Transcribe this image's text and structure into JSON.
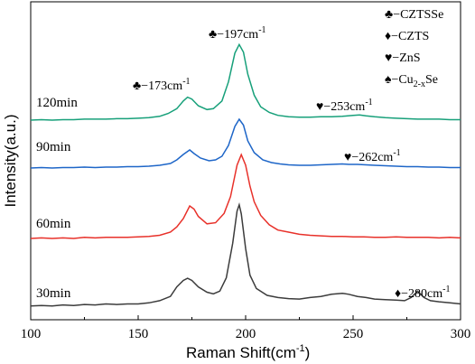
{
  "chart_data": {
    "type": "line",
    "xlabel": "Raman Shift(cm",
    "xlabel_sup": "-1",
    "xlabel_end": ")",
    "ylabel": "Intensity(a.u.)",
    "xlim": [
      100,
      300
    ],
    "xticks": [
      "100",
      "150",
      "200",
      "250",
      "300"
    ],
    "yticks_labels": false,
    "legend": [
      {
        "symbol": "♣",
        "label": "−CZTSSe"
      },
      {
        "symbol": "♦",
        "label": "−CZTS"
      },
      {
        "symbol": "♥",
        "label": "−ZnS"
      },
      {
        "symbol": "♠",
        "label": "−Cu",
        "sub": "2-x",
        "tail": "Se"
      }
    ],
    "series": [
      {
        "name": "30min",
        "color": "#3c3c3c",
        "baseline": 0,
        "points": [
          [
            100,
            2
          ],
          [
            105,
            3
          ],
          [
            110,
            2
          ],
          [
            115,
            4
          ],
          [
            120,
            3
          ],
          [
            125,
            5
          ],
          [
            130,
            4
          ],
          [
            135,
            6
          ],
          [
            140,
            5
          ],
          [
            145,
            6
          ],
          [
            150,
            6
          ],
          [
            155,
            8
          ],
          [
            160,
            12
          ],
          [
            165,
            20
          ],
          [
            168,
            38
          ],
          [
            171,
            50
          ],
          [
            173,
            54
          ],
          [
            175,
            50
          ],
          [
            178,
            38
          ],
          [
            182,
            28
          ],
          [
            185,
            25
          ],
          [
            188,
            30
          ],
          [
            191,
            55
          ],
          [
            194,
            120
          ],
          [
            196,
            180
          ],
          [
            197,
            192
          ],
          [
            198,
            175
          ],
          [
            200,
            110
          ],
          [
            202,
            60
          ],
          [
            205,
            35
          ],
          [
            210,
            22
          ],
          [
            215,
            18
          ],
          [
            220,
            16
          ],
          [
            225,
            15
          ],
          [
            230,
            18
          ],
          [
            235,
            20
          ],
          [
            240,
            24
          ],
          [
            245,
            26
          ],
          [
            248,
            24
          ],
          [
            252,
            20
          ],
          [
            256,
            18
          ],
          [
            260,
            15
          ],
          [
            265,
            14
          ],
          [
            270,
            13
          ],
          [
            274,
            12
          ],
          [
            277,
            18
          ],
          [
            280,
            30
          ],
          [
            283,
            18
          ],
          [
            286,
            12
          ],
          [
            290,
            10
          ],
          [
            295,
            8
          ],
          [
            300,
            6
          ]
        ]
      },
      {
        "name": "60min",
        "color": "#e8312a",
        "baseline": 0,
        "points": [
          [
            100,
            0
          ],
          [
            105,
            1
          ],
          [
            110,
            0
          ],
          [
            115,
            1
          ],
          [
            120,
            0
          ],
          [
            125,
            2
          ],
          [
            130,
            1
          ],
          [
            135,
            2
          ],
          [
            140,
            2
          ],
          [
            145,
            2
          ],
          [
            150,
            3
          ],
          [
            155,
            4
          ],
          [
            160,
            6
          ],
          [
            165,
            12
          ],
          [
            168,
            22
          ],
          [
            171,
            38
          ],
          [
            174,
            62
          ],
          [
            176,
            56
          ],
          [
            178,
            42
          ],
          [
            182,
            28
          ],
          [
            186,
            30
          ],
          [
            190,
            48
          ],
          [
            193,
            80
          ],
          [
            196,
            140
          ],
          [
            198,
            160
          ],
          [
            200,
            140
          ],
          [
            202,
            100
          ],
          [
            204,
            70
          ],
          [
            207,
            44
          ],
          [
            211,
            26
          ],
          [
            215,
            16
          ],
          [
            220,
            12
          ],
          [
            225,
            8
          ],
          [
            230,
            6
          ],
          [
            235,
            5
          ],
          [
            240,
            4
          ],
          [
            245,
            4
          ],
          [
            250,
            3
          ],
          [
            255,
            3
          ],
          [
            260,
            2
          ],
          [
            265,
            2
          ],
          [
            270,
            3
          ],
          [
            275,
            2
          ],
          [
            280,
            2
          ],
          [
            285,
            2
          ],
          [
            290,
            1
          ],
          [
            295,
            2
          ],
          [
            300,
            1
          ]
        ]
      },
      {
        "name": "90min",
        "color": "#1e66c8",
        "baseline": 0,
        "points": [
          [
            100,
            0
          ],
          [
            105,
            1
          ],
          [
            110,
            0
          ],
          [
            115,
            1
          ],
          [
            120,
            1
          ],
          [
            125,
            2
          ],
          [
            130,
            1
          ],
          [
            135,
            2
          ],
          [
            140,
            2
          ],
          [
            145,
            3
          ],
          [
            150,
            3
          ],
          [
            155,
            4
          ],
          [
            160,
            6
          ],
          [
            165,
            10
          ],
          [
            168,
            18
          ],
          [
            171,
            30
          ],
          [
            174,
            40
          ],
          [
            176,
            32
          ],
          [
            179,
            22
          ],
          [
            183,
            16
          ],
          [
            186,
            18
          ],
          [
            189,
            26
          ],
          [
            192,
            50
          ],
          [
            195,
            92
          ],
          [
            197,
            108
          ],
          [
            199,
            95
          ],
          [
            201,
            60
          ],
          [
            204,
            34
          ],
          [
            208,
            18
          ],
          [
            212,
            12
          ],
          [
            216,
            9
          ],
          [
            220,
            7
          ],
          [
            225,
            6
          ],
          [
            230,
            6
          ],
          [
            235,
            7
          ],
          [
            240,
            8
          ],
          [
            245,
            9
          ],
          [
            248,
            8
          ],
          [
            252,
            8
          ],
          [
            256,
            7
          ],
          [
            260,
            6
          ],
          [
            265,
            5
          ],
          [
            270,
            4
          ],
          [
            275,
            3
          ],
          [
            280,
            3
          ],
          [
            285,
            2
          ],
          [
            290,
            2
          ],
          [
            295,
            1
          ],
          [
            300,
            1
          ]
        ]
      },
      {
        "name": "120min",
        "color": "#17a07a",
        "baseline": 0,
        "points": [
          [
            100,
            0
          ],
          [
            105,
            1
          ],
          [
            110,
            0
          ],
          [
            115,
            1
          ],
          [
            120,
            1
          ],
          [
            125,
            2
          ],
          [
            130,
            2
          ],
          [
            135,
            2
          ],
          [
            140,
            3
          ],
          [
            145,
            3
          ],
          [
            150,
            4
          ],
          [
            155,
            5
          ],
          [
            160,
            8
          ],
          [
            164,
            14
          ],
          [
            168,
            24
          ],
          [
            171,
            40
          ],
          [
            173,
            48
          ],
          [
            175,
            44
          ],
          [
            178,
            30
          ],
          [
            182,
            22
          ],
          [
            185,
            24
          ],
          [
            189,
            40
          ],
          [
            192,
            80
          ],
          [
            195,
            140
          ],
          [
            197,
            158
          ],
          [
            199,
            142
          ],
          [
            201,
            96
          ],
          [
            204,
            52
          ],
          [
            207,
            28
          ],
          [
            211,
            16
          ],
          [
            215,
            10
          ],
          [
            220,
            7
          ],
          [
            225,
            6
          ],
          [
            230,
            6
          ],
          [
            235,
            7
          ],
          [
            240,
            7
          ],
          [
            245,
            8
          ],
          [
            250,
            10
          ],
          [
            253,
            11
          ],
          [
            256,
            9
          ],
          [
            260,
            7
          ],
          [
            265,
            5
          ],
          [
            270,
            4
          ],
          [
            275,
            3
          ],
          [
            280,
            2
          ],
          [
            285,
            2
          ],
          [
            290,
            2
          ],
          [
            295,
            1
          ],
          [
            300,
            1
          ]
        ]
      }
    ],
    "annotations": [
      {
        "symbol": "♣",
        "text": "−173cm",
        "sup": "-1"
      },
      {
        "symbol": "♣",
        "text": "−197cm",
        "sup": "-1"
      },
      {
        "symbol": "♥",
        "text": "−253cm",
        "sup": "-1"
      },
      {
        "symbol": "♥",
        "text": "−262cm",
        "sup": "-1"
      },
      {
        "symbol": "♦",
        "text": "−280cm",
        "sup": "-1"
      }
    ]
  }
}
